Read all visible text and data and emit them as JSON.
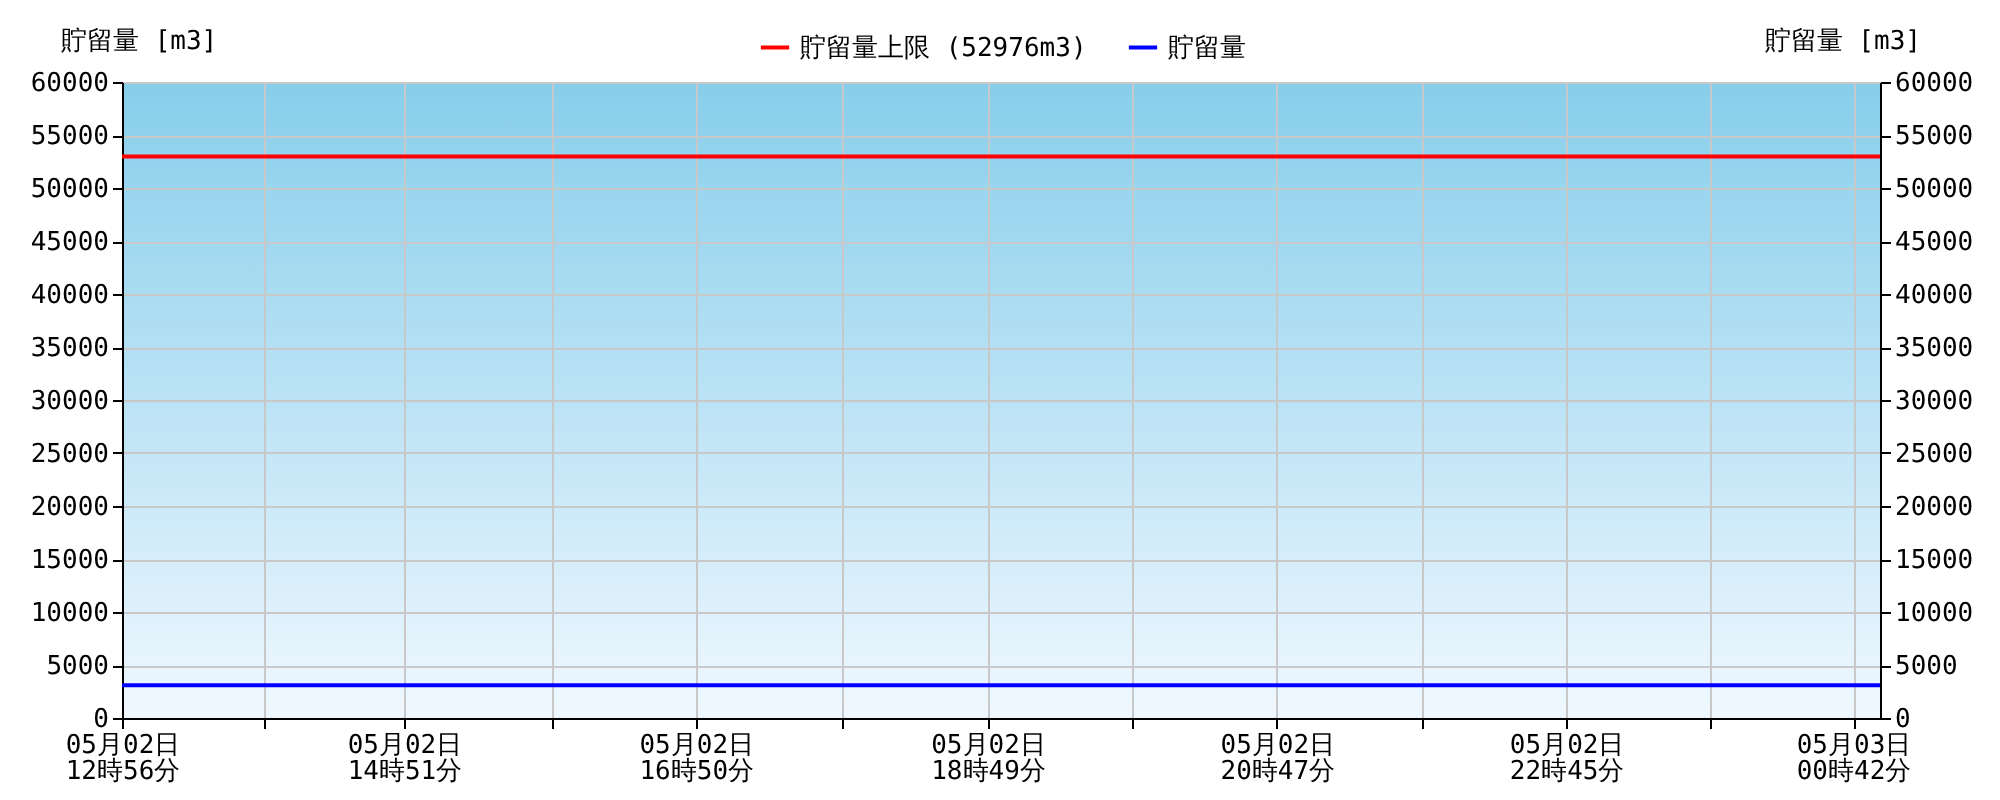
{
  "chart_data": {
    "type": "line",
    "ylabel": "貯留量 [m3]",
    "y2label": "貯留量 [m3]",
    "xlim": [
      "--05-02T12:56",
      "--05-03T00:53"
    ],
    "ylim": [
      0,
      60000
    ],
    "y2lim": [
      0,
      60000
    ],
    "xticks": [
      {
        "value": "--05-02T12:56",
        "label": "05月02日\n12時56分"
      },
      {
        "value": "--05-02T13:54",
        "label": null
      },
      {
        "value": "--05-02T14:51",
        "label": "05月02日\n14時51分"
      },
      {
        "value": "--05-02T15:51",
        "label": null
      },
      {
        "value": "--05-02T16:50",
        "label": "05月02日\n16時50分"
      },
      {
        "value": "--05-02T17:50",
        "label": null
      },
      {
        "value": "--05-02T18:49",
        "label": "05月02日\n18時49分"
      },
      {
        "value": "--05-02T19:48",
        "label": null
      },
      {
        "value": "--05-02T20:47",
        "label": "05月02日\n20時47分"
      },
      {
        "value": "--05-02T21:46",
        "label": null
      },
      {
        "value": "--05-02T22:45",
        "label": "05月02日\n22時45分"
      },
      {
        "value": "--05-02T23:44",
        "label": null
      },
      {
        "value": "--05-03T00:42",
        "label": "05月03日\n00時42分"
      }
    ],
    "yticks": [
      0,
      5000,
      10000,
      15000,
      20000,
      25000,
      30000,
      35000,
      40000,
      45000,
      50000,
      55000,
      60000
    ],
    "y2ticks": [
      0,
      5000,
      10000,
      15000,
      20000,
      25000,
      30000,
      35000,
      40000,
      45000,
      50000,
      55000,
      60000
    ],
    "series": [
      {
        "name": "貯留量上限 (52976m3)",
        "color": "#ff0000",
        "x": [
          "--05-02T12:56",
          "--05-03T00:53"
        ],
        "values": [
          52976,
          52976
        ]
      },
      {
        "name": "貯留量",
        "color": "#0000ff",
        "x": [
          "--05-02T12:56",
          "--05-03T00:53"
        ],
        "values": [
          3100,
          3100
        ]
      }
    ],
    "grid": true,
    "legend": "top",
    "marker": "none",
    "line_style": "solid"
  }
}
